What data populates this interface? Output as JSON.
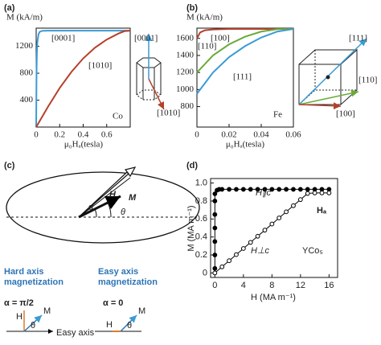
{
  "chart_data": [
    {
      "type": "line",
      "panel": "(a)",
      "y_label": "M (kA/m)",
      "x_label": "μ₀Hₐ(tesla)",
      "xlim": [
        0,
        0.8
      ],
      "ylim": [
        0,
        1470
      ],
      "xticks": [
        0,
        0.2,
        0.4,
        0.6
      ],
      "yticks": [
        400,
        800,
        1200
      ],
      "series": [
        {
          "name": "[0001]",
          "color": "#3a9bd5",
          "x": [
            0,
            0.003,
            0.006,
            0.01,
            0.02,
            0.03,
            0.05,
            0.1,
            0.2,
            0.4,
            0.6,
            0.8
          ],
          "values": [
            0,
            800,
            1100,
            1260,
            1380,
            1415,
            1430,
            1432,
            1432,
            1432,
            1432,
            1432
          ]
        },
        {
          "name": "[1010]",
          "color": "#b5402a",
          "x": [
            0,
            0.1,
            0.2,
            0.3,
            0.4,
            0.5,
            0.6,
            0.7,
            0.75,
            0.8
          ],
          "values": [
            0,
            300,
            580,
            820,
            1020,
            1180,
            1300,
            1390,
            1425,
            1432
          ]
        }
      ],
      "annotations": [
        "Co"
      ]
    },
    {
      "type": "line",
      "panel": "(b)",
      "y_label": "M (kA/m)",
      "x_label": "μ₀Hₐ(tesla)",
      "xlim": [
        0,
        0.06
      ],
      "ylim": [
        560,
        1720
      ],
      "xticks": [
        0,
        0.02,
        0.04,
        0.06
      ],
      "yticks": [
        800,
        1000,
        1200,
        1400,
        1600
      ],
      "series": [
        {
          "name": "[100]",
          "color": "#b5402a",
          "x": [
            0,
            0.002,
            0.005,
            0.01,
            0.02,
            0.04,
            0.06
          ],
          "values": [
            1600,
            1670,
            1695,
            1705,
            1710,
            1710,
            1710
          ]
        },
        {
          "name": "[110]",
          "color": "#6aaa3a",
          "x": [
            0,
            0.01,
            0.02,
            0.03,
            0.04,
            0.05,
            0.06
          ],
          "values": [
            1200,
            1400,
            1530,
            1620,
            1680,
            1708,
            1710
          ]
        },
        {
          "name": "[111]",
          "color": "#3a9bd5",
          "x": [
            0,
            0.01,
            0.02,
            0.03,
            0.04,
            0.05,
            0.06
          ],
          "values": [
            950,
            1200,
            1380,
            1510,
            1610,
            1680,
            1710
          ]
        }
      ],
      "annotations": [
        "Fe"
      ]
    },
    {
      "type": "line",
      "panel": "(d)",
      "y_label": "M (MA m⁻¹)",
      "x_label": "H (MA m⁻¹)",
      "xlim": [
        -0.6,
        17.2
      ],
      "ylim": [
        -0.05,
        1.05
      ],
      "xticks": [
        0,
        4,
        8,
        12,
        16
      ],
      "yticks": [
        0,
        0.2,
        0.4,
        0.6,
        0.8,
        {
          "value": 1,
          "label": "1.0"
        }
      ],
      "series": [
        {
          "name": "H∥c",
          "color": "#000000",
          "marker": "filled",
          "x": [
            0,
            0,
            0,
            0,
            0,
            0,
            0,
            0.3,
            0.6,
            1,
            2,
            3,
            4,
            5,
            6,
            7,
            8,
            9,
            10,
            11,
            12,
            13,
            14,
            15,
            16
          ],
          "values": [
            0.05,
            0.2,
            0.35,
            0.5,
            0.65,
            0.8,
            0.88,
            0.92,
            0.93,
            0.93,
            0.93,
            0.93,
            0.93,
            0.93,
            0.93,
            0.93,
            0.93,
            0.93,
            0.93,
            0.93,
            0.93,
            0.93,
            0.93,
            0.93,
            0.93
          ]
        },
        {
          "name": "H⊥c",
          "color": "#000000",
          "marker": "open",
          "x": [
            0,
            1,
            2,
            3,
            4,
            5,
            6,
            7,
            8,
            9,
            10,
            11,
            12,
            13,
            14,
            15,
            16
          ],
          "values": [
            0,
            0.068,
            0.136,
            0.204,
            0.272,
            0.34,
            0.408,
            0.476,
            0.544,
            0.612,
            0.68,
            0.748,
            0.816,
            0.884,
            0.89,
            0.89,
            0.89
          ]
        }
      ],
      "annotations": [
        "YCo₅",
        "Hₐ"
      ]
    }
  ],
  "insets": {
    "a": [
      "[0001]",
      "[1010]"
    ],
    "b": [
      "[111]",
      "[110]",
      "[100]"
    ]
  },
  "diagram_c": {
    "panel": "(c)",
    "labels": [
      "H",
      "M",
      "α",
      "θ"
    ],
    "hard_title": [
      "Hard axis",
      "magnetization"
    ],
    "hard_alpha": "α = π/2",
    "easy_title": [
      "Easy axis",
      "magnetization"
    ],
    "easy_alpha": "α = 0",
    "small_hard": [
      "H",
      "M",
      "θ",
      "Easy axis"
    ],
    "small_easy": [
      "H",
      "M",
      "θ"
    ]
  }
}
